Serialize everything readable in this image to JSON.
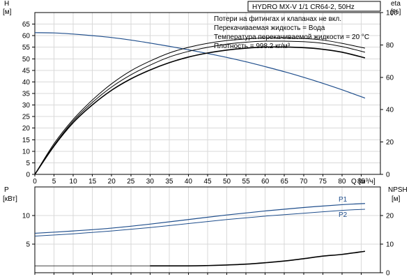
{
  "chart_data": [
    {
      "type": "line",
      "title": "HYDRO MX-V 1/1 CR64-2, 50Hz",
      "notes": [
        "Потери на фитингах и клапанах не вкл.",
        "Перекачиваемая жидкость = Вода",
        "Температура перекачиваемой жидкости = 20 °C",
        "Плотность = 998.2 кг/м³"
      ],
      "xlabel": "Q",
      "xunit": "[м³/ч]",
      "xlim": [
        0,
        90
      ],
      "xticks": [
        0,
        5,
        10,
        15,
        20,
        25,
        30,
        35,
        40,
        45,
        50,
        55,
        60,
        65,
        70,
        75,
        80,
        85
      ],
      "ylabel": "H",
      "yunit": "[м]",
      "ylim": [
        0,
        70
      ],
      "yticks": [
        0,
        5,
        10,
        15,
        20,
        25,
        30,
        35,
        40,
        45,
        50,
        55,
        60,
        65
      ],
      "y2label": "eta",
      "y2unit": "[%]",
      "y2lim": [
        0,
        100
      ],
      "y2ticks": [
        0,
        20,
        40,
        60,
        80,
        100
      ],
      "grid": true,
      "series": [
        {
          "axis": "left",
          "color": "#1f4e8c",
          "width": 1.2,
          "x": [
            0,
            5,
            10,
            15,
            20,
            25,
            30,
            35,
            40,
            45,
            50,
            55,
            60,
            65,
            70,
            75,
            80,
            86
          ],
          "y": [
            61.3,
            61.2,
            60.7,
            60.0,
            59.2,
            58.1,
            56.8,
            55.4,
            53.9,
            52.3,
            50.6,
            48.7,
            46.6,
            44.4,
            42.0,
            39.4,
            36.6,
            33.0
          ]
        },
        {
          "axis": "right",
          "color": "#000000",
          "width": 1.0,
          "x": [
            0,
            5,
            10,
            15,
            20,
            25,
            30,
            35,
            40,
            45,
            50,
            55,
            60,
            65,
            70,
            75,
            80,
            86
          ],
          "y": [
            0,
            19,
            34,
            46,
            56,
            64,
            70,
            75,
            78.5,
            81,
            82.7,
            83.7,
            84.3,
            84.3,
            84,
            83,
            81,
            78
          ]
        },
        {
          "axis": "right",
          "color": "#000000",
          "width": 1.0,
          "x": [
            0,
            5,
            10,
            15,
            20,
            25,
            30,
            35,
            40,
            45,
            50,
            55,
            60,
            65,
            70,
            75,
            80,
            86
          ],
          "y": [
            0,
            18,
            33,
            44.5,
            54,
            61.5,
            67.5,
            72.5,
            76,
            78.5,
            80.5,
            81.7,
            82.3,
            82.3,
            82,
            81,
            79,
            75.5
          ]
        },
        {
          "axis": "right",
          "color": "#000000",
          "width": 1.6,
          "x": [
            0,
            5,
            10,
            15,
            20,
            25,
            30,
            35,
            40,
            45,
            50,
            55,
            60,
            65,
            70,
            75,
            80,
            86
          ],
          "y": [
            0,
            17.5,
            32,
            43,
            52,
            59,
            64.5,
            69,
            72.5,
            75,
            76.8,
            78,
            78.7,
            78.7,
            78.3,
            77.3,
            75.5,
            72
          ]
        }
      ]
    },
    {
      "type": "line",
      "xlim": [
        0,
        90
      ],
      "xticks": [
        0,
        5,
        10,
        15,
        20,
        25,
        30,
        35,
        40,
        45,
        50,
        55,
        60,
        65,
        70,
        75,
        80,
        85
      ],
      "ylabel": "P",
      "yunit": "[кВт]",
      "ylim": [
        0,
        15
      ],
      "yticks": [
        5,
        10
      ],
      "y2label": "NPSH",
      "y2unit": "[м]",
      "y2lim": [
        0,
        30
      ],
      "y2ticks": [
        0,
        10,
        20
      ],
      "grid": true,
      "series": [
        {
          "name": "P1",
          "axis": "left",
          "color": "#1f4e8c",
          "width": 1.2,
          "x": [
            0,
            10,
            20,
            30,
            40,
            50,
            60,
            70,
            80,
            86
          ],
          "y": [
            6.9,
            7.3,
            7.8,
            8.5,
            9.3,
            10.1,
            10.8,
            11.4,
            11.9,
            12.1
          ]
        },
        {
          "name": "P2",
          "axis": "left",
          "color": "#1f4e8c",
          "width": 1.0,
          "x": [
            0,
            10,
            20,
            30,
            40,
            50,
            60,
            70,
            80,
            86
          ],
          "y": [
            6.4,
            6.8,
            7.3,
            7.9,
            8.6,
            9.3,
            9.9,
            10.4,
            10.9,
            11.1
          ]
        },
        {
          "axis": "left",
          "color": "#000000",
          "width": 0.8,
          "x": [
            0,
            30
          ],
          "y": [
            1.2,
            1.2
          ]
        },
        {
          "axis": "right",
          "color": "#000000",
          "width": 1.6,
          "x": [
            30,
            40,
            45,
            50,
            55,
            60,
            65,
            70,
            75,
            80,
            86
          ],
          "y": [
            2.4,
            2.4,
            2.5,
            2.7,
            3.0,
            3.5,
            4.1,
            4.9,
            5.8,
            6.4,
            7.5
          ]
        }
      ]
    }
  ]
}
